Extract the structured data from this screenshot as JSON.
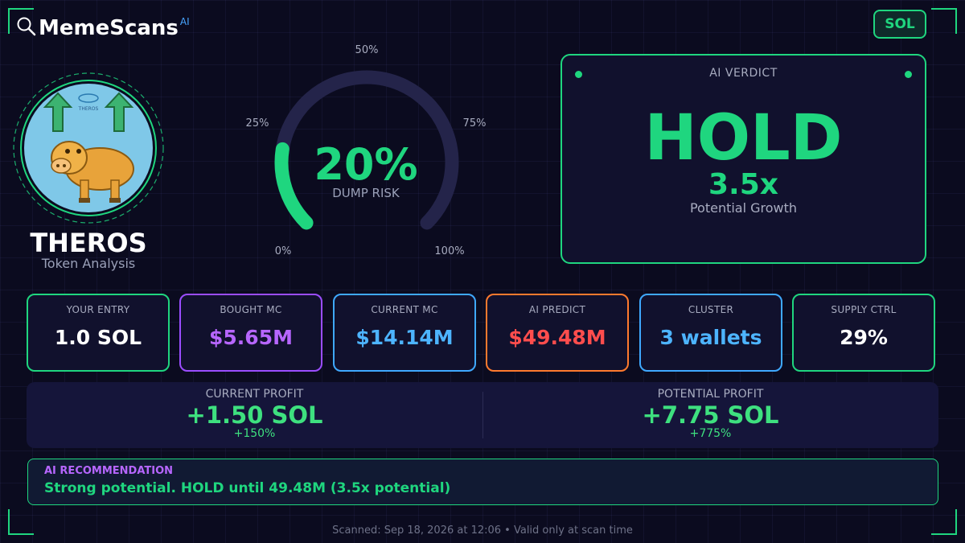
{
  "brand": {
    "name": "MemeScans",
    "superscript": "AI"
  },
  "chain_badge": "SOL",
  "token": {
    "name": "THEROS",
    "subtitle": "Token Analysis",
    "logo_text": "THEROS"
  },
  "dump_risk": {
    "value": 20,
    "value_label": "20%",
    "label": "DUMP RISK",
    "ticks": {
      "t0": "0%",
      "t25": "25%",
      "t50": "50%",
      "t75": "75%",
      "t100": "100%"
    },
    "fill_color": "#1fd67f",
    "track_color": "#24244a"
  },
  "verdict": {
    "title": "AI VERDICT",
    "decision": "HOLD",
    "multiplier": "3.5x",
    "subtitle": "Potential Growth"
  },
  "cards": [
    {
      "label": "YOUR ENTRY",
      "value": "1.0 SOL",
      "border": "#1fd67f",
      "color": "#ffffff"
    },
    {
      "label": "BOUGHT MC",
      "value": "$5.65M",
      "border": "#9b4dff",
      "color": "#b766ff"
    },
    {
      "label": "CURRENT MC",
      "value": "$14.14M",
      "border": "#3fa9ff",
      "color": "#4db4ff"
    },
    {
      "label": "AI PREDICT",
      "value": "$49.48M",
      "border": "#ff7a2e",
      "color": "#ff4d4d"
    },
    {
      "label": "CLUSTER",
      "value": "3 wallets",
      "border": "#3fa9ff",
      "color": "#4db4ff"
    },
    {
      "label": "SUPPLY CTRL",
      "value": "29%",
      "border": "#1fd67f",
      "color": "#ffffff"
    }
  ],
  "profit": {
    "current": {
      "label": "CURRENT PROFIT",
      "value": "+1.50 SOL",
      "pct": "+150%"
    },
    "potential": {
      "label": "POTENTIAL PROFIT",
      "value": "+7.75 SOL",
      "pct": "+775%"
    }
  },
  "recommendation": {
    "title": "AI RECOMMENDATION",
    "text": "Strong potential. HOLD until 49.48M (3.5x potential)"
  },
  "footer": "Scanned: Sep 18, 2026 at 12:06  •  Valid only at scan time"
}
